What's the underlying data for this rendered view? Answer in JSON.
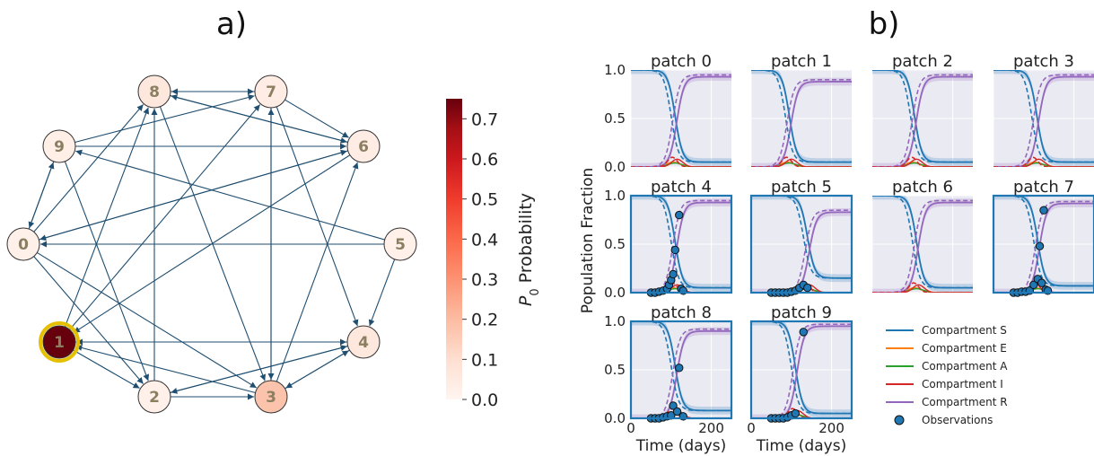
{
  "panels": {
    "a_label": "a)",
    "b_label": "b)"
  },
  "chart_data": [
    {
      "type": "network",
      "nodes": [
        {
          "id": "0",
          "p0": 0.02
        },
        {
          "id": "1",
          "p0": 0.75,
          "highlighted": true
        },
        {
          "id": "2",
          "p0": 0.02
        },
        {
          "id": "3",
          "p0": 0.18
        },
        {
          "id": "4",
          "p0": 0.06
        },
        {
          "id": "5",
          "p0": 0.02
        },
        {
          "id": "6",
          "p0": 0.04
        },
        {
          "id": "7",
          "p0": 0.04
        },
        {
          "id": "8",
          "p0": 0.06
        },
        {
          "id": "9",
          "p0": 0.03
        }
      ],
      "edges": [
        [
          "7",
          "8"
        ],
        [
          "8",
          "7"
        ],
        [
          "7",
          "6"
        ],
        [
          "7",
          "3"
        ],
        [
          "3",
          "7"
        ],
        [
          "7",
          "4"
        ],
        [
          "1",
          "7"
        ],
        [
          "8",
          "6"
        ],
        [
          "6",
          "8"
        ],
        [
          "8",
          "3"
        ],
        [
          "2",
          "8"
        ],
        [
          "1",
          "8"
        ],
        [
          "9",
          "7"
        ],
        [
          "9",
          "6"
        ],
        [
          "9",
          "0"
        ],
        [
          "0",
          "9"
        ],
        [
          "9",
          "2"
        ],
        [
          "6",
          "0"
        ],
        [
          "0",
          "6"
        ],
        [
          "3",
          "6"
        ],
        [
          "5",
          "9"
        ],
        [
          "5",
          "0"
        ],
        [
          "5",
          "4"
        ],
        [
          "1",
          "4"
        ],
        [
          "4",
          "1"
        ],
        [
          "3",
          "1"
        ],
        [
          "2",
          "4"
        ],
        [
          "4",
          "2"
        ],
        [
          "3",
          "4"
        ],
        [
          "4",
          "3"
        ],
        [
          "0",
          "8"
        ],
        [
          "0",
          "3"
        ],
        [
          "0",
          "2"
        ],
        [
          "1",
          "2"
        ],
        [
          "2",
          "3"
        ],
        [
          "6",
          "1"
        ]
      ],
      "colorbar": {
        "label": "P_0 Probability",
        "label_main": "P",
        "label_sub": "0",
        "label_rest": " Probability",
        "min": 0.0,
        "max": 0.75,
        "ticks": [
          "0.0",
          "0.1",
          "0.2",
          "0.3",
          "0.4",
          "0.5",
          "0.6",
          "0.7"
        ],
        "color_low": "#fff5f0",
        "color_high": "#67000d"
      }
    },
    {
      "type": "line",
      "ylabel": "Population Fraction",
      "xlabel": "Time (days)",
      "xlim": [
        0,
        250
      ],
      "ylim": [
        0,
        1
      ],
      "xticks": [
        "0",
        "200"
      ],
      "yticks": [
        "0.0",
        "0.5",
        "1.0"
      ],
      "grid": true,
      "legend": {
        "position": "bottom-right",
        "entries": [
          {
            "label": "Compartment S",
            "color": "#1f77b4",
            "kind": "line"
          },
          {
            "label": "Compartment E",
            "color": "#ff7f0e",
            "kind": "line"
          },
          {
            "label": "Compartment A",
            "color": "#2ca02c",
            "kind": "line"
          },
          {
            "label": "Compartment I",
            "color": "#d62728",
            "kind": "line"
          },
          {
            "label": "Compartment R",
            "color": "#9467bd",
            "kind": "line"
          },
          {
            "label": "Observations",
            "color": "#1f77b4",
            "kind": "marker"
          }
        ]
      },
      "patches": [
        {
          "title": "patch 0",
          "mid": 110,
          "mid_dashed": 100,
          "s_end": 0.05,
          "r_end": 0.93,
          "observed": false,
          "observations": []
        },
        {
          "title": "patch 1",
          "mid": 95,
          "mid_dashed": 85,
          "s_end": 0.05,
          "r_end": 0.88,
          "observed": false,
          "observations": []
        },
        {
          "title": "patch 2",
          "mid": 105,
          "mid_dashed": 95,
          "s_end": 0.05,
          "r_end": 0.93,
          "observed": false,
          "observations": []
        },
        {
          "title": "patch 3",
          "mid": 108,
          "mid_dashed": 95,
          "s_end": 0.05,
          "r_end": 0.93,
          "observed": false,
          "observations": []
        },
        {
          "title": "patch 4",
          "mid": 110,
          "mid_dashed": 100,
          "s_end": 0.05,
          "r_end": 0.93,
          "observed": true,
          "observations": [
            [
              50,
              0.0
            ],
            [
              60,
              0.0
            ],
            [
              70,
              0.01
            ],
            [
              80,
              0.02
            ],
            [
              90,
              0.04
            ],
            [
              95,
              0.08
            ],
            [
              100,
              0.13
            ],
            [
              105,
              0.19
            ],
            [
              110,
              0.44
            ],
            [
              120,
              0.8
            ],
            [
              125,
              0.04
            ],
            [
              130,
              0.02
            ]
          ]
        },
        {
          "title": "patch 5",
          "mid": 140,
          "mid_dashed": 130,
          "s_end": 0.15,
          "r_end": 0.83,
          "observed": true,
          "observations": [
            [
              50,
              0.0
            ],
            [
              60,
              0.0
            ],
            [
              70,
              0.0
            ],
            [
              80,
              0.0
            ],
            [
              90,
              0.0
            ],
            [
              100,
              0.01
            ],
            [
              110,
              0.02
            ],
            [
              120,
              0.05
            ],
            [
              130,
              0.08
            ],
            [
              140,
              0.05
            ]
          ]
        },
        {
          "title": "patch 6",
          "mid": 110,
          "mid_dashed": 100,
          "s_end": 0.05,
          "r_end": 0.93,
          "observed": false,
          "observations": []
        },
        {
          "title": "patch 7",
          "mid": 110,
          "mid_dashed": 100,
          "s_end": 0.07,
          "r_end": 0.92,
          "observed": true,
          "observations": [
            [
              50,
              0.0
            ],
            [
              60,
              0.0
            ],
            [
              70,
              0.01
            ],
            [
              80,
              0.01
            ],
            [
              90,
              0.02
            ],
            [
              100,
              0.08
            ],
            [
              110,
              0.14
            ],
            [
              115,
              0.48
            ],
            [
              120,
              0.1
            ],
            [
              125,
              0.85
            ],
            [
              130,
              0.03
            ],
            [
              135,
              0.02
            ]
          ]
        },
        {
          "title": "patch 8",
          "mid": 110,
          "mid_dashed": 100,
          "s_end": 0.08,
          "r_end": 0.9,
          "observed": true,
          "observations": [
            [
              50,
              0.0
            ],
            [
              60,
              0.0
            ],
            [
              70,
              0.0
            ],
            [
              80,
              0.01
            ],
            [
              90,
              0.02
            ],
            [
              100,
              0.03
            ],
            [
              105,
              0.13
            ],
            [
              115,
              0.07
            ],
            [
              120,
              0.52
            ],
            [
              130,
              0.02
            ]
          ]
        },
        {
          "title": "patch 9",
          "mid": 110,
          "mid_dashed": 100,
          "s_end": 0.05,
          "r_end": 0.95,
          "observed": true,
          "observations": [
            [
              50,
              0.0
            ],
            [
              60,
              0.0
            ],
            [
              70,
              0.0
            ],
            [
              80,
              0.0
            ],
            [
              90,
              0.01
            ],
            [
              100,
              0.03
            ],
            [
              110,
              0.05
            ],
            [
              130,
              0.89
            ]
          ]
        }
      ]
    }
  ]
}
